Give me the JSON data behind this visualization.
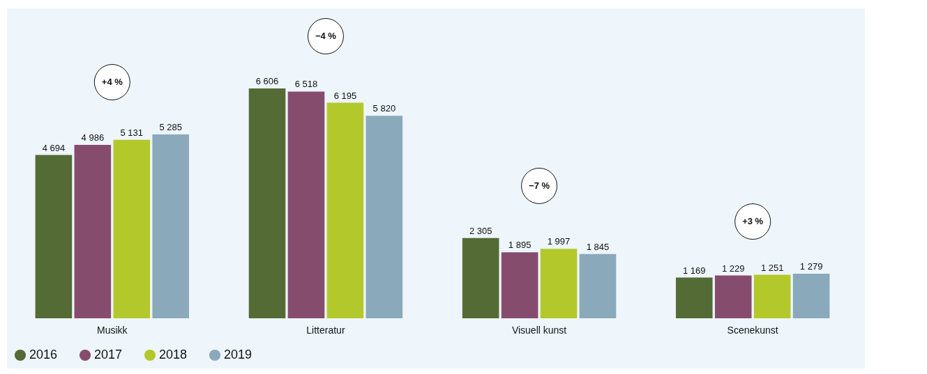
{
  "chart_data": {
    "type": "bar",
    "categories": [
      "Musikk",
      "Litteratur",
      "Visuell kunst",
      "Scenekunst"
    ],
    "series": [
      {
        "name": "2016",
        "color": "#556b35",
        "values": [
          4694,
          6606,
          2305,
          1169
        ],
        "value_labels": [
          "4 694",
          "6 606",
          "2 305",
          "1 169"
        ]
      },
      {
        "name": "2017",
        "color": "#864c6e",
        "values": [
          4986,
          6518,
          1895,
          1229
        ],
        "value_labels": [
          "4 986",
          "6 518",
          "1 895",
          "1 229"
        ]
      },
      {
        "name": "2018",
        "color": "#b3c92b",
        "values": [
          5131,
          6195,
          1997,
          1251
        ],
        "value_labels": [
          "5 131",
          "6 195",
          "1 997",
          "1 251"
        ]
      },
      {
        "name": "2019",
        "color": "#8aa9bb",
        "values": [
          5285,
          5820,
          1845,
          1279
        ],
        "value_labels": [
          "5 285",
          "5 820",
          "1 845",
          "1 279"
        ]
      }
    ],
    "annotations": [
      "+4 %",
      "−4 %",
      "−7 %",
      "+3 %"
    ],
    "legend": "bottom left",
    "grid": false
  }
}
